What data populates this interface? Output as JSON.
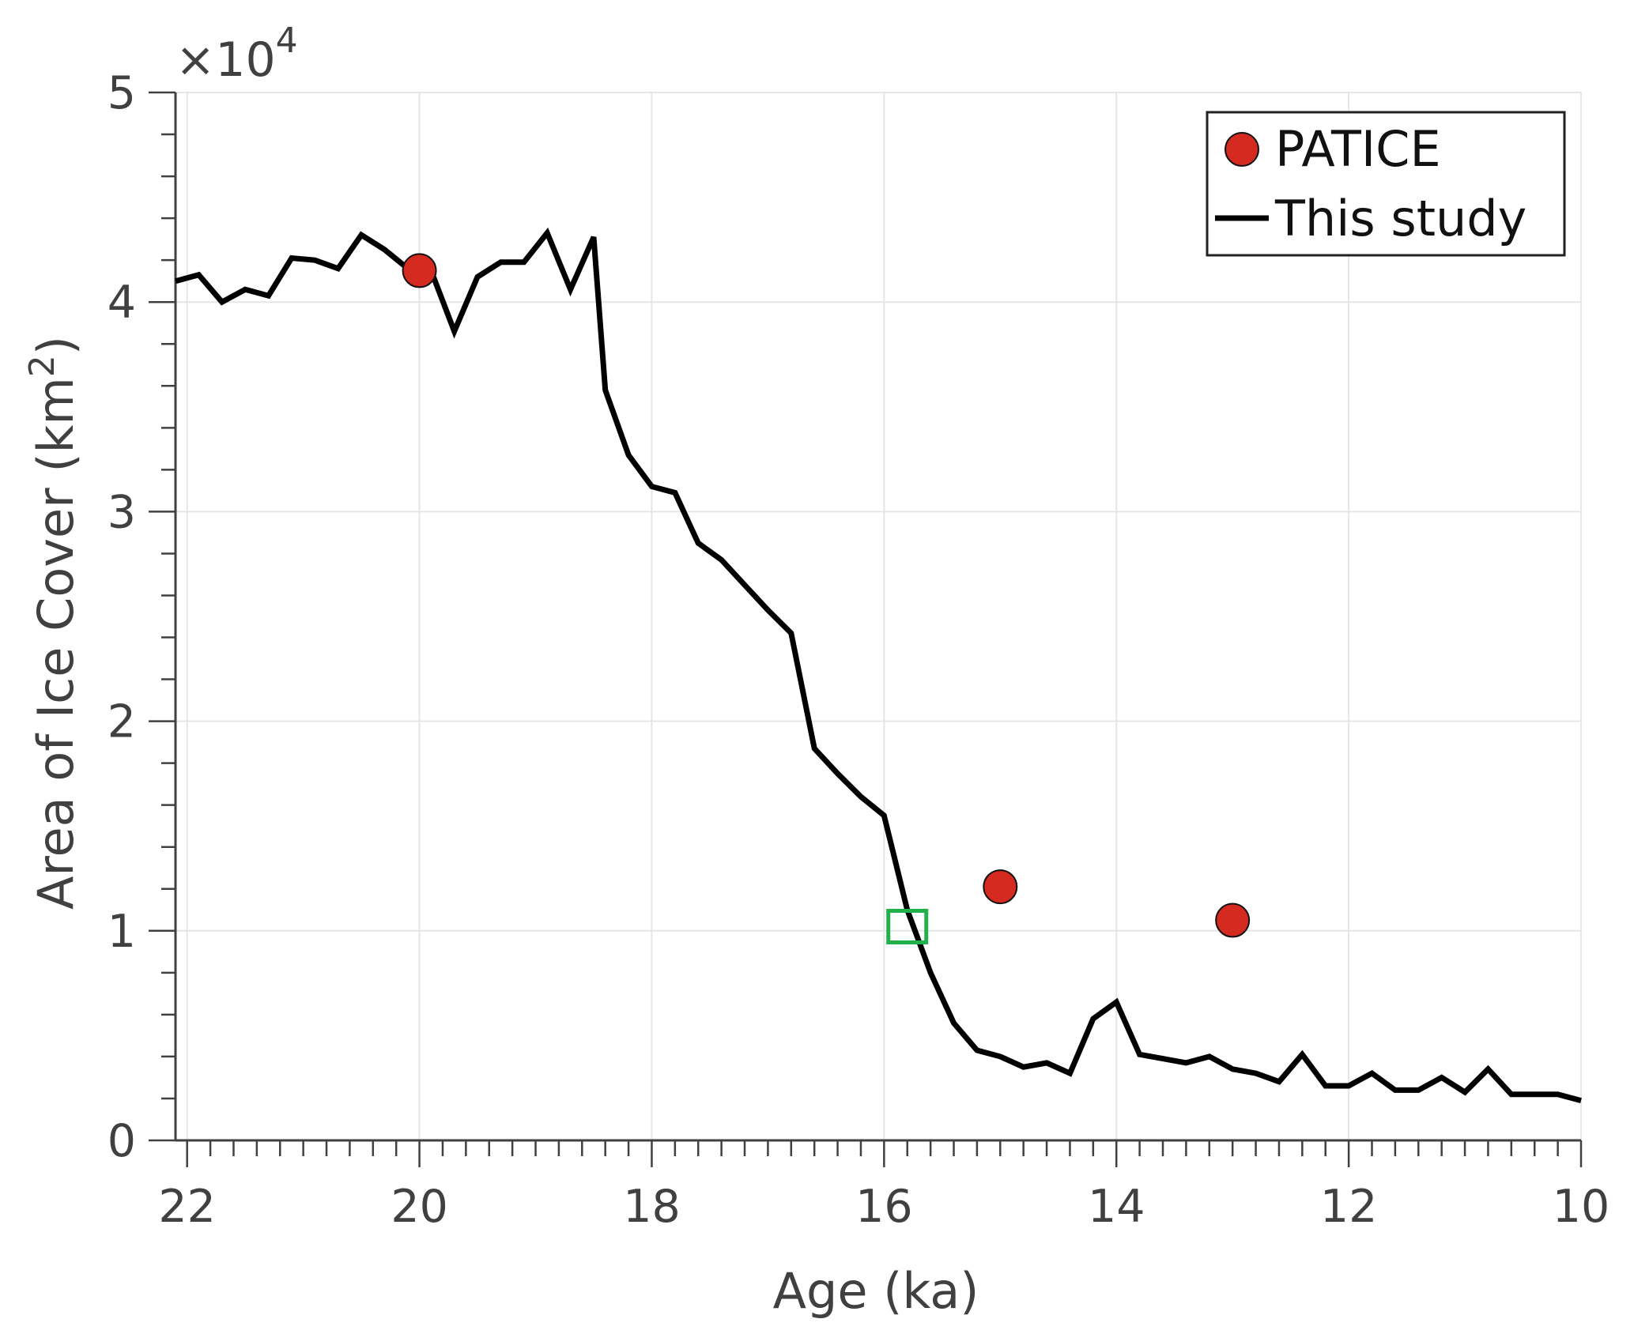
{
  "chart_data": {
    "type": "line",
    "xlabel": "Age (ka)",
    "ylabel": "Area of Ice Cover (km",
    "ylabel_sup": "2",
    "ylabel_close": ")",
    "exponent_label": "×10",
    "exponent_power": "4",
    "xlim": [
      22.1,
      10
    ],
    "ylim": [
      0,
      50000
    ],
    "x_reversed": true,
    "grid": true,
    "xticks": [
      22,
      20,
      18,
      16,
      14,
      12,
      10
    ],
    "xtick_labels": [
      "22",
      "20",
      "18",
      "16",
      "14",
      "12",
      "10"
    ],
    "yticks": [
      0,
      10000,
      20000,
      30000,
      40000,
      50000
    ],
    "ytick_labels": [
      "0",
      "1",
      "2",
      "3",
      "4",
      "5"
    ],
    "legend_position": "top-right",
    "colors": {
      "line": "#000000",
      "marker": "#d42a20",
      "highlight": "#22b04b",
      "grid": "#e6e6e6",
      "axis": "#404040"
    },
    "series": [
      {
        "name": "PATICE",
        "kind": "scatter",
        "x": [
          20,
          15,
          13
        ],
        "y": [
          41500,
          12100,
          10500
        ]
      },
      {
        "name": "This study",
        "kind": "line",
        "x": [
          22.1,
          21.9,
          21.7,
          21.5,
          21.3,
          21.1,
          20.9,
          20.7,
          20.5,
          20.3,
          20.1,
          19.9,
          19.7,
          19.5,
          19.3,
          19.1,
          18.9,
          18.7,
          18.5,
          18.4,
          18.2,
          18.0,
          17.8,
          17.6,
          17.4,
          17.2,
          17.0,
          16.8,
          16.6,
          16.4,
          16.2,
          16.0,
          15.8,
          15.6,
          15.4,
          15.2,
          15.0,
          14.8,
          14.6,
          14.4,
          14.2,
          14.0,
          13.8,
          13.6,
          13.4,
          13.2,
          13.0,
          12.8,
          12.6,
          12.4,
          12.2,
          12.0,
          11.8,
          11.6,
          11.4,
          11.2,
          11.0,
          10.8,
          10.6,
          10.4,
          10.2,
          10.0
        ],
        "y": [
          41000,
          41300,
          40000,
          40600,
          40300,
          42100,
          42000,
          41600,
          43200,
          42500,
          41600,
          41500,
          38600,
          41200,
          41900,
          41900,
          43300,
          40600,
          43100,
          35800,
          32700,
          31200,
          30900,
          28500,
          27700,
          26500,
          25300,
          24200,
          18700,
          17500,
          16400,
          15500,
          11000,
          8000,
          5600,
          4300,
          4000,
          3500,
          3700,
          3200,
          5800,
          6600,
          4100,
          3900,
          3700,
          4000,
          3400,
          3200,
          2800,
          4100,
          2600,
          2600,
          3200,
          2400,
          2400,
          3000,
          2300,
          3400,
          2200,
          2200,
          2200,
          1900
        ]
      }
    ],
    "highlight_marker": {
      "shape": "square",
      "x": 15.8,
      "y": 10200
    }
  }
}
